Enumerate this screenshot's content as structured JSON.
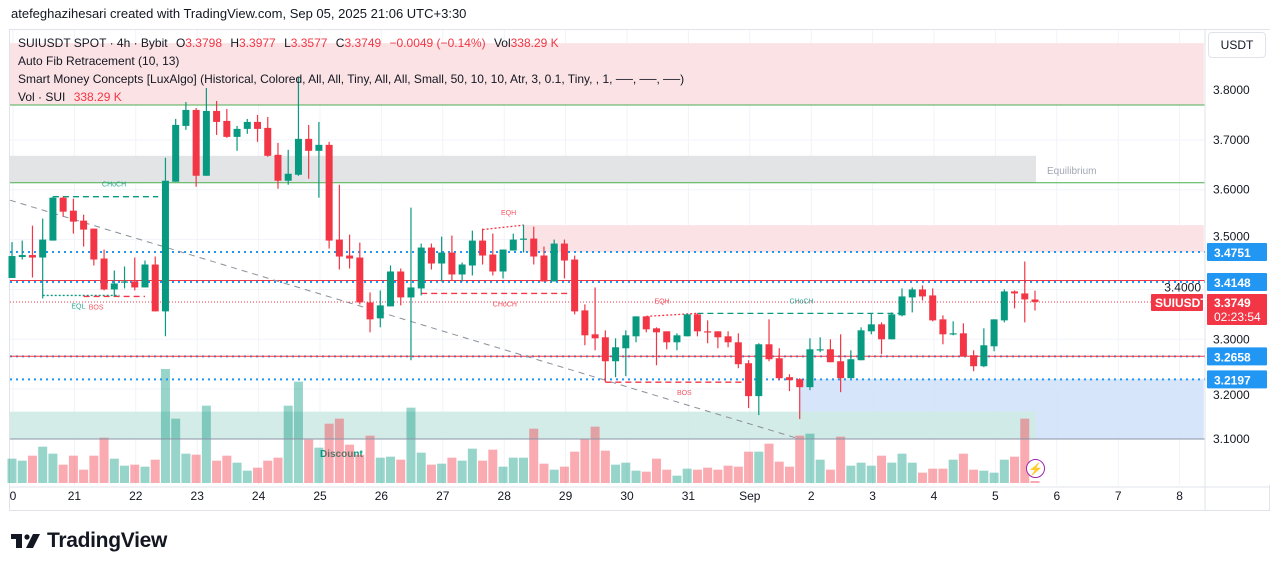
{
  "attribution": "atefeghazihesari created with TradingView.com, Sep 05, 2025 21:06 UTC+3:30",
  "legend": {
    "symbol": "SUIUSDT SPOT · 4h · Bybit",
    "o_label": "O",
    "o": "3.3798",
    "h_label": "H",
    "h": "3.3977",
    "l_label": "L",
    "l": "3.3577",
    "c_label": "C",
    "c": "3.3749",
    "change": "−0.0049 (−0.14%)",
    "vol_label": "Vol",
    "vol": "338.29 K"
  },
  "indicators": [
    "Auto Fib Retracement (10, 13)",
    "Smart Money Concepts [LuxAlgo] (Historical, Colored, All, All, Tiny, All, All, Small, 50, 10, 10, Atr, 3, 0.1, Tiny, , 1, ──, ──, ──)"
  ],
  "volume_legend": {
    "label": "Vol · SUI",
    "value": "338.29 K"
  },
  "currency_button": "USDT",
  "logo": "TradingView",
  "icons": {
    "alert": "lightning-icon",
    "logo": "tradingview-logo-icon"
  },
  "colors": {
    "up": "#089981",
    "down": "#f23645",
    "accent_blue": "#2196f3",
    "premium_zone": "#fbe2e4",
    "equilibrium_zone": "#e3e4e6",
    "discount_zone": "#cfeae4",
    "ob_blue_zone": "#d3e2fb",
    "green_level": "#4caf50",
    "alert_purple": "#9c27b0"
  },
  "chart_data": {
    "type": "candlestick",
    "title": "SUIUSDT SPOT · 4h · Bybit",
    "xlabel": "",
    "ylabel": "USDT",
    "ylim": [
      3.06,
      3.9
    ],
    "y_ticks": [
      {
        "value": 3.8,
        "label": "3.8000"
      },
      {
        "value": 3.7,
        "label": "3.7000"
      },
      {
        "value": 3.6,
        "label": "3.6000"
      },
      {
        "value": 3.5,
        "label": "3.5000"
      },
      {
        "value": 3.4,
        "label": "3.4000"
      },
      {
        "value": 3.3,
        "label": "3.3000"
      },
      {
        "value": 3.2,
        "label": "3.2000"
      },
      {
        "value": 3.1,
        "label": "3.1000"
      }
    ],
    "x_ticks": [
      "0",
      "21",
      "22",
      "23",
      "24",
      "25",
      "26",
      "27",
      "28",
      "29",
      "30",
      "31",
      "Sep",
      "2",
      "3",
      "4",
      "5",
      "6",
      "7",
      "8"
    ],
    "candles_per_day": 6,
    "candles_ohlc": [
      [
        3.423,
        3.495,
        3.423,
        3.467
      ],
      [
        3.465,
        3.498,
        3.46,
        3.469
      ],
      [
        3.469,
        3.528,
        3.424,
        3.464
      ],
      [
        3.464,
        3.542,
        3.382,
        3.5
      ],
      [
        3.498,
        3.586,
        3.498,
        3.584
      ],
      [
        3.584,
        3.586,
        3.546,
        3.556
      ],
      [
        3.558,
        3.582,
        3.512,
        3.536
      ],
      [
        3.538,
        3.55,
        3.486,
        3.52
      ],
      [
        3.522,
        3.522,
        3.448,
        3.46
      ],
      [
        3.462,
        3.48,
        3.398,
        3.4
      ],
      [
        3.4,
        3.438,
        3.386,
        3.412
      ],
      [
        3.414,
        3.446,
        3.402,
        3.416
      ],
      [
        3.416,
        3.464,
        3.398,
        3.404
      ],
      [
        3.404,
        3.458,
        3.404,
        3.45
      ],
      [
        3.45,
        3.466,
        3.356,
        3.356
      ],
      [
        3.356,
        3.664,
        3.306,
        3.618
      ],
      [
        3.616,
        3.742,
        3.616,
        3.73
      ],
      [
        3.728,
        3.776,
        3.72,
        3.76
      ],
      [
        3.76,
        3.764,
        3.606,
        3.628
      ],
      [
        3.628,
        3.804,
        3.628,
        3.758
      ],
      [
        3.758,
        3.778,
        3.71,
        3.736
      ],
      [
        3.738,
        3.762,
        3.704,
        3.706
      ],
      [
        3.706,
        3.728,
        3.678,
        3.722
      ],
      [
        3.722,
        3.742,
        3.712,
        3.736
      ],
      [
        3.736,
        3.75,
        3.696,
        3.722
      ],
      [
        3.724,
        3.746,
        3.666,
        3.668
      ],
      [
        3.67,
        3.694,
        3.602,
        3.618
      ],
      [
        3.618,
        3.68,
        3.61,
        3.632
      ],
      [
        3.63,
        3.826,
        3.628,
        3.702
      ],
      [
        3.702,
        3.73,
        3.622,
        3.678
      ],
      [
        3.678,
        3.736,
        3.584,
        3.69
      ],
      [
        3.69,
        3.696,
        3.482,
        3.498
      ],
      [
        3.5,
        3.61,
        3.44,
        3.466
      ],
      [
        3.468,
        3.51,
        3.442,
        3.462
      ],
      [
        3.464,
        3.494,
        3.37,
        3.374
      ],
      [
        3.374,
        3.394,
        3.314,
        3.34
      ],
      [
        3.342,
        3.398,
        3.324,
        3.368
      ],
      [
        3.366,
        3.448,
        3.366,
        3.436
      ],
      [
        3.436,
        3.442,
        3.368,
        3.384
      ],
      [
        3.384,
        3.564,
        3.258,
        3.404
      ],
      [
        3.402,
        3.492,
        3.388,
        3.484
      ],
      [
        3.484,
        3.492,
        3.44,
        3.452
      ],
      [
        3.452,
        3.506,
        3.416,
        3.474
      ],
      [
        3.474,
        3.508,
        3.418,
        3.43
      ],
      [
        3.43,
        3.454,
        3.416,
        3.45
      ],
      [
        3.448,
        3.518,
        3.428,
        3.498
      ],
      [
        3.498,
        3.522,
        3.45,
        3.468
      ],
      [
        3.47,
        3.512,
        3.428,
        3.436
      ],
      [
        3.436,
        3.48,
        3.422,
        3.48
      ],
      [
        3.478,
        3.512,
        3.478,
        3.5
      ],
      [
        3.5,
        3.53,
        3.474,
        3.502
      ],
      [
        3.502,
        3.526,
        3.45,
        3.466
      ],
      [
        3.468,
        3.486,
        3.416,
        3.416
      ],
      [
        3.416,
        3.5,
        3.416,
        3.492
      ],
      [
        3.492,
        3.5,
        3.422,
        3.458
      ],
      [
        3.46,
        3.468,
        3.35,
        3.356
      ],
      [
        3.358,
        3.37,
        3.288,
        3.308
      ],
      [
        3.31,
        3.404,
        3.278,
        3.302
      ],
      [
        3.304,
        3.318,
        3.214,
        3.256
      ],
      [
        3.256,
        3.302,
        3.224,
        3.284
      ],
      [
        3.282,
        3.318,
        3.226,
        3.308
      ],
      [
        3.306,
        3.346,
        3.294,
        3.346
      ],
      [
        3.346,
        3.346,
        3.314,
        3.32
      ],
      [
        3.322,
        3.324,
        3.248,
        3.314
      ],
      [
        3.316,
        3.316,
        3.28,
        3.294
      ],
      [
        3.294,
        3.312,
        3.278,
        3.308
      ],
      [
        3.306,
        3.352,
        3.306,
        3.35
      ],
      [
        3.35,
        3.352,
        3.306,
        3.316
      ],
      [
        3.316,
        3.338,
        3.292,
        3.315
      ],
      [
        3.316,
        3.316,
        3.282,
        3.304
      ],
      [
        3.306,
        3.316,
        3.284,
        3.294
      ],
      [
        3.294,
        3.312,
        3.242,
        3.25
      ],
      [
        3.252,
        3.258,
        3.162,
        3.186
      ],
      [
        3.186,
        3.292,
        3.148,
        3.29
      ],
      [
        3.29,
        3.34,
        3.256,
        3.26
      ],
      [
        3.262,
        3.282,
        3.218,
        3.222
      ],
      [
        3.224,
        3.23,
        3.196,
        3.218
      ],
      [
        3.22,
        3.222,
        3.14,
        3.204
      ],
      [
        3.204,
        3.302,
        3.198,
        3.28
      ],
      [
        3.278,
        3.304,
        3.274,
        3.28
      ],
      [
        3.28,
        3.3,
        3.254,
        3.254
      ],
      [
        3.256,
        3.31,
        3.194,
        3.222
      ],
      [
        3.222,
        3.278,
        3.222,
        3.26
      ],
      [
        3.258,
        3.324,
        3.258,
        3.318
      ],
      [
        3.316,
        3.352,
        3.31,
        3.33
      ],
      [
        3.33,
        3.334,
        3.27,
        3.3
      ],
      [
        3.3,
        3.354,
        3.3,
        3.35
      ],
      [
        3.348,
        3.402,
        3.346,
        3.386
      ],
      [
        3.384,
        3.404,
        3.354,
        3.4
      ],
      [
        3.4,
        3.408,
        3.378,
        3.386
      ],
      [
        3.388,
        3.402,
        3.336,
        3.338
      ],
      [
        3.34,
        3.348,
        3.29,
        3.31
      ],
      [
        3.31,
        3.336,
        3.308,
        3.312
      ],
      [
        3.312,
        3.332,
        3.266,
        3.266
      ],
      [
        3.268,
        3.278,
        3.236,
        3.246
      ],
      [
        3.246,
        3.322,
        3.244,
        3.288
      ],
      [
        3.286,
        3.34,
        3.276,
        3.34
      ],
      [
        3.338,
        3.4,
        3.334,
        3.396
      ],
      [
        3.396,
        3.398,
        3.362,
        3.392
      ],
      [
        3.392,
        3.456,
        3.334,
        3.38
      ],
      [
        3.3798,
        3.3977,
        3.3577,
        3.3749
      ]
    ],
    "volumes_k": [
      6205,
      5695,
      6970,
      9265,
      7480,
      4675,
      6970,
      3400,
      6970,
      11560,
      6205,
      4420,
      4675,
      4165,
      5950,
      29070,
      16405,
      7480,
      7225,
      19720,
      5695,
      6970,
      5185,
      3145,
      3910,
      5695,
      6460,
      19720,
      25840,
      11050,
      9010,
      15130,
      16405,
      9775,
      7225,
      12070,
      6460,
      6715,
      5950,
      19210,
      7735,
      4675,
      4930,
      6460,
      5695,
      8755,
      5695,
      8500,
      4165,
      6460,
      6460,
      13855,
      4930,
      3400,
      4165,
      7990,
      11220,
      14365,
      8245,
      4675,
      5185,
      3145,
      2890,
      6205,
      3400,
      1870,
      3655,
      3400,
      3910,
      3400,
      4420,
      4165,
      7990,
      7990,
      10030,
      5440,
      4165,
      12070,
      12580,
      5950,
      3400,
      11815,
      4420,
      5185,
      4420,
      6970,
      5185,
      7480,
      5185,
      2635,
      3655,
      3655,
      5950,
      7480,
      3400,
      3145,
      2635,
      5950,
      6715,
      16405,
      338.29
    ],
    "zones": [
      {
        "name": "premium-zone",
        "low": 3.77,
        "high": 3.894,
        "from": -1,
        "to": 116.5,
        "color": "#fbe2e4"
      },
      {
        "name": "equilibrium-zone",
        "low": 3.614,
        "high": 3.668,
        "from": -1,
        "to": 100.1,
        "color": "#e3e4e6",
        "label": "Equilibrium"
      },
      {
        "name": "supply-zone",
        "low": 3.475,
        "high": 3.529,
        "from": 50,
        "to": 116.5,
        "color": "#fbe2e4"
      },
      {
        "name": "demand-zone",
        "low": 3.1,
        "high": 3.22,
        "from": 77,
        "to": 116.5,
        "color": "#d3e2fb"
      },
      {
        "name": "discount-zone",
        "low": 3.1,
        "high": 3.155,
        "from": -1,
        "to": 100.1,
        "color": "#cfeae4",
        "label": "Discount"
      }
    ],
    "levels": [
      {
        "price": 3.77,
        "color": "#4caf50",
        "style": "solid"
      },
      {
        "price": 3.614,
        "color": "#4caf50",
        "style": "solid"
      },
      {
        "price": 3.4751,
        "color": "#2196f3",
        "style": "dotted",
        "label": "3.4751"
      },
      {
        "price": 3.418,
        "color": "#f23645",
        "style": "solid"
      },
      {
        "price": 3.4148,
        "color": "#2196f3",
        "style": "dotted",
        "label": "3.4148"
      },
      {
        "price": 3.3749,
        "color": "#f23645",
        "style": "fine"
      },
      {
        "price": 3.2658,
        "color": "#2196f3",
        "style": "dotted",
        "label": "3.2658"
      },
      {
        "price": 3.266,
        "color": "#f23645",
        "style": "solid"
      },
      {
        "price": 3.2197,
        "color": "#2196f3",
        "style": "dotted",
        "label": "3.2197"
      },
      {
        "price": 3.1,
        "color": "#8a93a6",
        "style": "solid"
      }
    ],
    "structures": [
      {
        "label": "CHoCH",
        "price": 3.586,
        "end_price": 3.586,
        "from": 4,
        "to": 14.3,
        "label_at": 8.8,
        "color": "#089981",
        "style": "dashed"
      },
      {
        "label": "EQL",
        "price": 3.388,
        "end_price": 3.388,
        "from": 3,
        "to": 10.5,
        "label_at": 5.8,
        "color": "#089981",
        "style": "dotted"
      },
      {
        "label": "BOS",
        "price": 3.386,
        "end_price": 3.386,
        "from": 7,
        "to": 13,
        "label_at": 7.5,
        "color": "#f23645",
        "style": "dashed"
      },
      {
        "label": "EQH",
        "price": 3.52,
        "end_price": 3.529,
        "from": 46,
        "to": 50,
        "label_at": 47.8,
        "color": "#f23645",
        "style": "dotted"
      },
      {
        "label": "CHoCH",
        "price": 3.392,
        "end_price": 3.392,
        "from": 40,
        "to": 54.5,
        "label_at": 47,
        "color": "#f23645",
        "style": "dashed"
      },
      {
        "label": "EQH",
        "price": 3.346,
        "end_price": 3.352,
        "from": 62,
        "to": 67,
        "label_at": 62.8,
        "color": "#f23645",
        "style": "dotted"
      },
      {
        "label": "CHoCH",
        "price": 3.352,
        "end_price": 3.352,
        "from": 67,
        "to": 87.5,
        "label_at": 76,
        "color": "#089981",
        "style": "dashed"
      },
      {
        "label": "BOS",
        "price": 3.214,
        "end_price": 3.214,
        "from": 58,
        "to": 72.5,
        "label_at": 65,
        "color": "#f23645",
        "style": "dashed"
      }
    ],
    "trendline": {
      "from": [
        -0.2,
        3.579
      ],
      "to": [
        77,
        3.1
      ],
      "color": "#8a8f99"
    },
    "current_price": {
      "symbol": "SUIUSDT",
      "price": "3.3749",
      "value": 3.3749,
      "countdown": "02:23:54"
    }
  }
}
